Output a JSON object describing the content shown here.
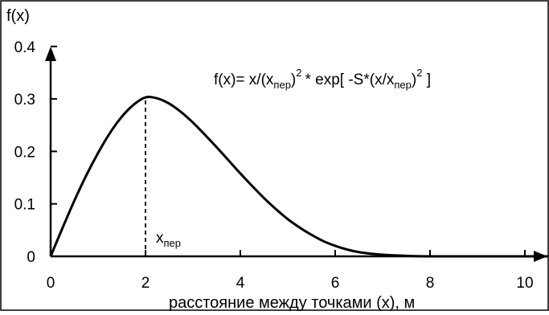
{
  "chart_data": {
    "type": "line",
    "ylabel": "f(x)",
    "xlabel": "расстояние между точками (x), м",
    "formula": {
      "prefix": "f(x)= x/(x",
      "sub1": "пер",
      "part2": ")",
      "sup1": "2",
      "part3": "* exp[ -S*(x/x",
      "sub2": "пер",
      "part4": ")",
      "sup2": "2",
      "part5": " ]"
    },
    "annotation": {
      "main": "x",
      "sub": "пер",
      "x_value": 2.0
    },
    "xlim": [
      0,
      10.5
    ],
    "ylim": [
      0,
      0.4
    ],
    "x_ticks": [
      0,
      2,
      4,
      6,
      8,
      10
    ],
    "x_tick_labels": [
      "0",
      "2",
      "4",
      "6",
      "8",
      "10"
    ],
    "y_ticks": [
      0,
      0.1,
      0.2,
      0.3,
      0.4
    ],
    "y_tick_labels": [
      "0",
      "0.1",
      "0.2",
      "0.3",
      "0.4"
    ],
    "grid": false,
    "series": [
      {
        "x": [
          0,
          0.25,
          0.5,
          0.75,
          1.0,
          1.25,
          1.5,
          1.75,
          2.0,
          2.25,
          2.5,
          2.75,
          3.0,
          3.25,
          3.5,
          3.75,
          4.0,
          4.25,
          4.5,
          4.75,
          5.0,
          5.25,
          5.5,
          5.75,
          6.0,
          6.25,
          6.5,
          6.75,
          7.0,
          7.5,
          8.0,
          9.0,
          10.0,
          10.5
        ],
        "y": [
          0,
          0.054,
          0.106,
          0.154,
          0.197,
          0.235,
          0.266,
          0.289,
          0.303,
          0.301,
          0.291,
          0.275,
          0.255,
          0.232,
          0.208,
          0.183,
          0.158,
          0.134,
          0.111,
          0.09,
          0.071,
          0.055,
          0.041,
          0.029,
          0.02,
          0.013,
          0.008,
          0.005,
          0.003,
          0.001,
          0.0,
          0.0,
          0.0,
          0.0
        ]
      }
    ]
  }
}
